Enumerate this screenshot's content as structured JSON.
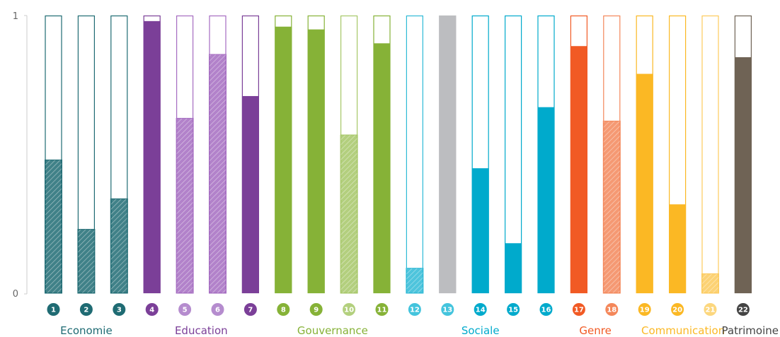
{
  "chart_data": {
    "type": "bar",
    "ylim": [
      0,
      1
    ],
    "yticks": [
      "0",
      "1"
    ],
    "grid": false,
    "categories": [
      "1",
      "2",
      "3",
      "4",
      "5",
      "6",
      "7",
      "8",
      "9",
      "10",
      "11",
      "12",
      "13",
      "14",
      "15",
      "16",
      "17",
      "18",
      "19",
      "20",
      "21",
      "22"
    ],
    "values": [
      0.48,
      0.23,
      0.34,
      0.98,
      0.63,
      0.86,
      0.71,
      0.96,
      0.95,
      0.57,
      0.9,
      0.09,
      1.0,
      0.45,
      0.18,
      0.67,
      0.89,
      0.62,
      0.79,
      0.32,
      0.07,
      0.85
    ],
    "hatched": [
      true,
      true,
      true,
      false,
      true,
      true,
      false,
      false,
      false,
      true,
      false,
      true,
      false,
      false,
      false,
      false,
      false,
      true,
      false,
      false,
      true,
      false
    ],
    "colors": [
      "#1f6b73",
      "#1f6b73",
      "#1f6b73",
      "#7b3f98",
      "#a56cc1",
      "#a56cc1",
      "#7b3f98",
      "#86b237",
      "#86b237",
      "#a6c767",
      "#86b237",
      "#2fbad6",
      "#bcbdc0",
      "#00aacc",
      "#00aacc",
      "#00aacc",
      "#f15a24",
      "#f4875a",
      "#fbb824",
      "#fbb824",
      "#fcca5c",
      "#6f6355"
    ],
    "badge_colors": [
      "#1f6b73",
      "#1f6b73",
      "#1f6b73",
      "#7b3f98",
      "#b58cce",
      "#b58cce",
      "#7b3f98",
      "#86b237",
      "#86b237",
      "#b3d07e",
      "#86b237",
      "#44c4dd",
      "#44c4dd",
      "#00aacc",
      "#00aacc",
      "#00aacc",
      "#f15a24",
      "#f4875a",
      "#fbb824",
      "#fbb824",
      "#fcd77e",
      "#444444"
    ],
    "groups": [
      {
        "label": "Economie",
        "from": 0,
        "to": 2,
        "color": "#1f6b73"
      },
      {
        "label": "Education",
        "from": 3,
        "to": 6,
        "color": "#7b3f98"
      },
      {
        "label": "Gouvernance",
        "from": 7,
        "to": 10,
        "color": "#86b237"
      },
      {
        "label": "Sociale",
        "from": 11,
        "to": 15,
        "color": "#00aacc"
      },
      {
        "label": "Genre",
        "from": 16,
        "to": 17,
        "color": "#f15a24"
      },
      {
        "label": "Communication",
        "from": 18,
        "to": 20,
        "color": "#fbb824"
      },
      {
        "label": "Patrimoine",
        "from": 21,
        "to": 21,
        "color": "#444444"
      }
    ]
  }
}
